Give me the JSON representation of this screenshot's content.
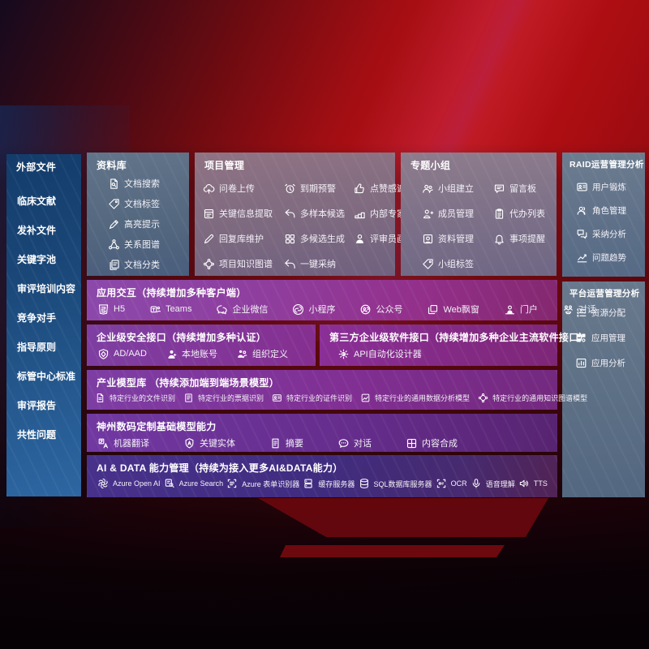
{
  "palette": {
    "background_red": "#b00f13",
    "sidebar_blue": "#1d4c80",
    "panel_slate": "#5f7183",
    "panel_mauve": "#85707f",
    "row_purple": "#7d3f9f",
    "row_magenta": "#8f2f89",
    "row_indigo": "#3f2b7e"
  },
  "sidebar": {
    "title": "外部文件",
    "items": [
      "临床文献",
      "发补文件",
      "关键字池",
      "审评培训内容",
      "竞争对手",
      "指导原则",
      "标管中心标准",
      "审评报告",
      "共性问题"
    ]
  },
  "library": {
    "title": "资料库",
    "items": [
      {
        "icon": "doc-search",
        "label": "文档搜索"
      },
      {
        "icon": "tag",
        "label": "文档标签"
      },
      {
        "icon": "highlighter",
        "label": "高亮提示"
      },
      {
        "icon": "network",
        "label": "关系图谱"
      },
      {
        "icon": "doc-copy",
        "label": "文档分类"
      }
    ]
  },
  "project": {
    "title": "项目管理",
    "items": [
      {
        "icon": "cloud-upload",
        "label": "问卷上传"
      },
      {
        "icon": "alarm",
        "label": "到期预警"
      },
      {
        "icon": "thumbs-up",
        "label": "点赞感谢"
      },
      {
        "icon": "doc-extract",
        "label": "关键信息提取"
      },
      {
        "icon": "reply-arrow",
        "label": "多样本候选"
      },
      {
        "icon": "rank-podium",
        "label": "内部专家排名"
      },
      {
        "icon": "pencil",
        "label": "回复库维护"
      },
      {
        "icon": "grid-gen",
        "label": "多候选生成"
      },
      {
        "icon": "person",
        "label": "评审员画像"
      },
      {
        "icon": "knowledge-graph",
        "label": "项目知识图谱"
      },
      {
        "icon": "accept-arrow",
        "label": "一键采纳"
      }
    ]
  },
  "topic_group": {
    "title": "专题小组",
    "items": [
      {
        "icon": "people",
        "label": "小组建立"
      },
      {
        "icon": "bbs-board",
        "label": "留言板"
      },
      {
        "icon": "person-add",
        "label": "成员管理"
      },
      {
        "icon": "clipboard",
        "label": "代办列表"
      },
      {
        "icon": "album",
        "label": "资料管理"
      },
      {
        "icon": "bell",
        "label": "事项提醒"
      },
      {
        "icon": "tag",
        "label": "小组标签"
      }
    ]
  },
  "raid": {
    "title": "RAID运营管理分析",
    "items": [
      {
        "icon": "id-card",
        "label": "用户锻炼"
      },
      {
        "icon": "people-outline",
        "label": "角色管理"
      },
      {
        "icon": "qa-chat",
        "label": "采纳分析"
      },
      {
        "icon": "trend-chart",
        "label": "问题趋势"
      }
    ]
  },
  "platform": {
    "title": "平台运营管理分析",
    "items": [
      {
        "icon": "resource-list",
        "label": "资源分配"
      },
      {
        "icon": "app-grid",
        "label": "应用管理"
      },
      {
        "icon": "app-chart",
        "label": "应用分析"
      }
    ]
  },
  "rows": [
    {
      "title": "应用交互（持续增加多种客户端）",
      "items": [
        {
          "icon": "h5-logo",
          "label": "H5"
        },
        {
          "icon": "teams-logo",
          "label": "Teams"
        },
        {
          "icon": "wechat-work-logo",
          "label": "企业微信"
        },
        {
          "icon": "miniprogram-logo",
          "label": "小程序"
        },
        {
          "icon": "official-account-logo",
          "label": "公众号"
        },
        {
          "icon": "web-window",
          "label": "Web飘窗"
        },
        {
          "icon": "portal-person",
          "label": "门户"
        },
        {
          "icon": "chat-duo",
          "label": "对话"
        }
      ]
    },
    {
      "title": "企业级安全接口（持续增加多种认证）",
      "items": [
        {
          "icon": "ad-shield",
          "label": "AD/AAD"
        },
        {
          "icon": "local-account",
          "label": "本地账号"
        },
        {
          "icon": "org-people",
          "label": "组织定义"
        }
      ]
    },
    {
      "title": "第三方企业级软件接口（持续增加多种企业主流软件接口）",
      "items": [
        {
          "icon": "api-gear",
          "label": "API自动化设计器"
        }
      ]
    },
    {
      "title": "产业模型库 （持续添加端到端场景模型）",
      "items": [
        {
          "icon": "doc-file",
          "label": "特定行业的文件识别"
        },
        {
          "icon": "invoice",
          "label": "特定行业的票据识别"
        },
        {
          "icon": "id-card",
          "label": "特定行业的证件识别"
        },
        {
          "icon": "image-chart",
          "label": "特定行业的通用数据分析模型"
        },
        {
          "icon": "knowledge-graph",
          "label": "特定行业的通用知识图谱模型"
        }
      ]
    },
    {
      "title": "神州数码定制基础模型能力",
      "items": [
        {
          "icon": "translate",
          "label": "机器翻译"
        },
        {
          "icon": "entity-shield",
          "label": "关键实体"
        },
        {
          "icon": "summary-doc",
          "label": "摘要"
        },
        {
          "icon": "chat-bubble",
          "label": "对话"
        },
        {
          "icon": "content-compose",
          "label": "内容合成"
        }
      ]
    },
    {
      "title": "AI & DATA 能力管理（持续为接入更多AI&DATA能力）",
      "items": [
        {
          "icon": "openai-logo",
          "label": "Azure Open AI"
        },
        {
          "icon": "azure-search",
          "label": "Azure Search"
        },
        {
          "icon": "form-recognizer",
          "label": "Azure 表单识别器"
        },
        {
          "icon": "cache-server",
          "label": "缓存服务器"
        },
        {
          "icon": "sql-database",
          "label": "SQL数据库服务器"
        },
        {
          "icon": "ocr-scan",
          "label": "OCR"
        },
        {
          "icon": "speech-mic",
          "label": "语音理解"
        },
        {
          "icon": "tts-speaker",
          "label": "TTS"
        }
      ]
    }
  ]
}
